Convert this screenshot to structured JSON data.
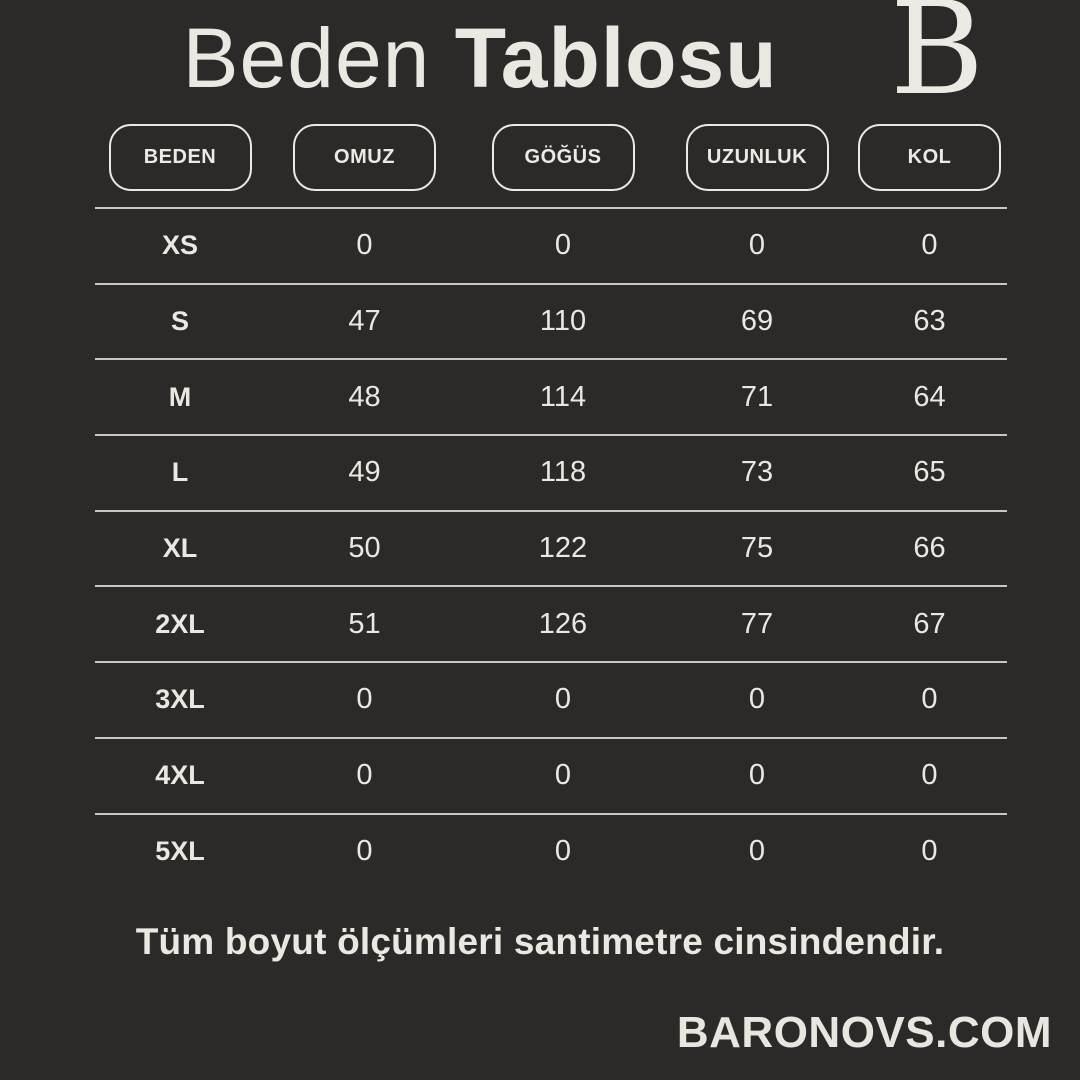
{
  "title": {
    "regular": "Beden",
    "bold": "Tablosu"
  },
  "logo": {
    "letter": "B"
  },
  "table": {
    "columns": [
      "BEDEN",
      "OMUZ",
      "GÖĞÜS",
      "UZUNLUK",
      "KOL"
    ],
    "rows": [
      {
        "size": "XS",
        "values": [
          "0",
          "0",
          "0",
          "0"
        ]
      },
      {
        "size": "S",
        "values": [
          "47",
          "110",
          "69",
          "63"
        ]
      },
      {
        "size": "M",
        "values": [
          "48",
          "114",
          "71",
          "64"
        ]
      },
      {
        "size": "L",
        "values": [
          "49",
          "118",
          "73",
          "65"
        ]
      },
      {
        "size": "XL",
        "values": [
          "50",
          "122",
          "75",
          "66"
        ]
      },
      {
        "size": "2XL",
        "values": [
          "51",
          "126",
          "77",
          "67"
        ]
      },
      {
        "size": "3XL",
        "values": [
          "0",
          "0",
          "0",
          "0"
        ]
      },
      {
        "size": "4XL",
        "values": [
          "0",
          "0",
          "0",
          "0"
        ]
      },
      {
        "size": "5XL",
        "values": [
          "0",
          "0",
          "0",
          "0"
        ]
      }
    ]
  },
  "footer": {
    "note": "Tüm boyut ölçümleri santimetre cinsindendir.",
    "website": "BARONOVS.COM"
  },
  "colors": {
    "background": "#2b2a28",
    "text": "#eae8e1",
    "line": "#c9c7c1"
  },
  "units": "cm"
}
